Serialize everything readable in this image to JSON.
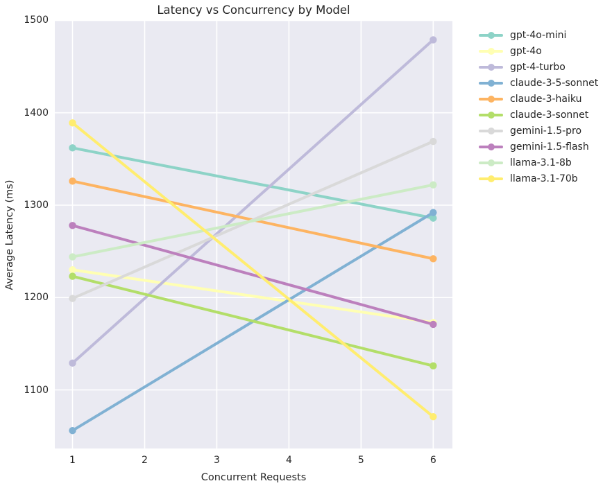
{
  "style": {
    "plot_bg": "#eaeaf2",
    "grid_color": "#ffffff",
    "text_color": "#262626"
  },
  "chart_data": {
    "type": "line",
    "title": "Latency vs Concurrency by Model",
    "xlabel": "Concurrent Requests",
    "ylabel": "Average Latency (ms)",
    "x": [
      1,
      6
    ],
    "xticks": [
      1,
      2,
      3,
      4,
      5,
      6
    ],
    "yticks": [
      1100,
      1200,
      1300,
      1400,
      1500
    ],
    "xlim": [
      0.75,
      6.27
    ],
    "ylim": [
      1036,
      1500
    ],
    "grid": true,
    "legend_position": "right-outside",
    "series": [
      {
        "name": "gpt-4o-mini",
        "color": "#8dd3c7",
        "values": [
          1362,
          1286
        ]
      },
      {
        "name": "gpt-4o",
        "color": "#ffffb3",
        "values": [
          1230,
          1173
        ]
      },
      {
        "name": "gpt-4-turbo",
        "color": "#bebada",
        "values": [
          1129,
          1479
        ]
      },
      {
        "name": "claude-3-5-sonnet",
        "color": "#80b1d3",
        "values": [
          1056,
          1292
        ]
      },
      {
        "name": "claude-3-haiku",
        "color": "#fdb462",
        "values": [
          1326,
          1242
        ]
      },
      {
        "name": "claude-3-sonnet",
        "color": "#b3de69",
        "values": [
          1223,
          1126
        ]
      },
      {
        "name": "gemini-1.5-pro",
        "color": "#d9d9d9",
        "values": [
          1199,
          1369
        ]
      },
      {
        "name": "gemini-1.5-flash",
        "color": "#bc80bd",
        "values": [
          1278,
          1171
        ]
      },
      {
        "name": "llama-3.1-8b",
        "color": "#ccebc5",
        "values": [
          1244,
          1322
        ]
      },
      {
        "name": "llama-3.1-70b",
        "color": "#ffed6f",
        "values": [
          1389,
          1071
        ]
      }
    ]
  }
}
